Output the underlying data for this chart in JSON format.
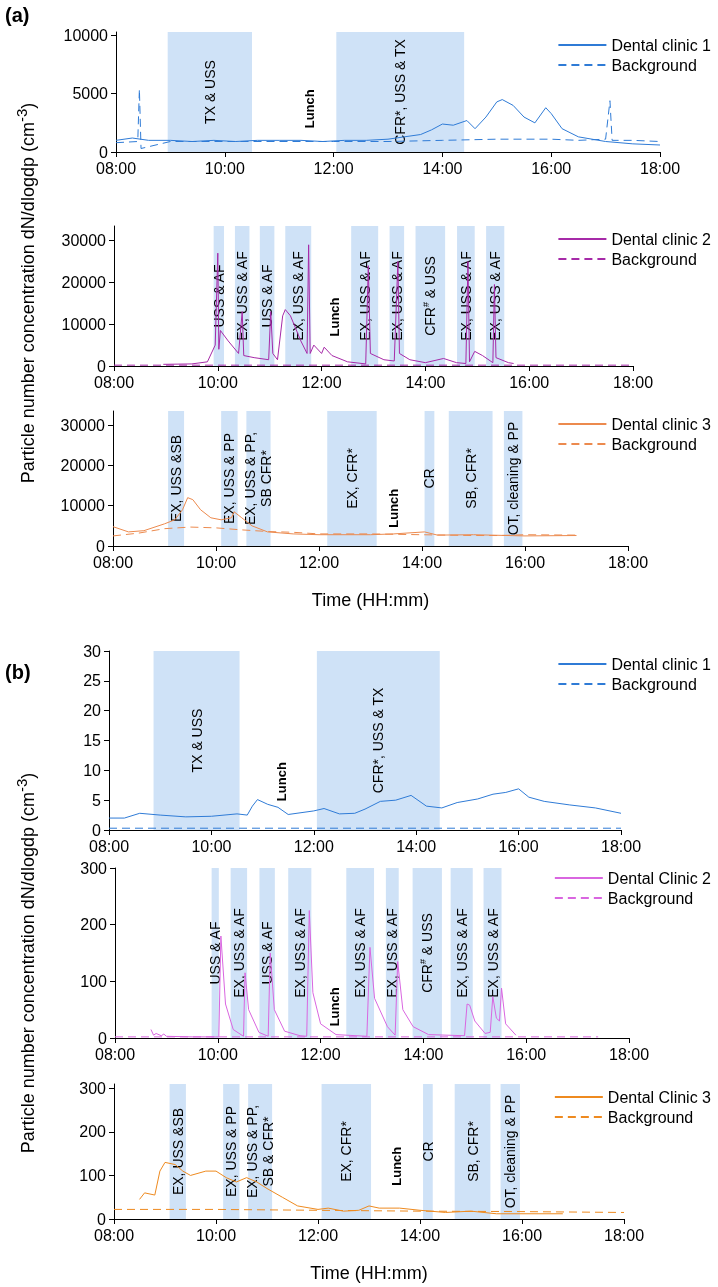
{
  "chart_data": [
    {
      "type": "line",
      "title": "(a)",
      "xlim": [
        8,
        18
      ],
      "xticks": [
        {
          "value": 8,
          "label": "08:00"
        },
        {
          "value": 10,
          "label": "10:00"
        },
        {
          "value": 12,
          "label": "12:00"
        },
        {
          "value": 14,
          "label": "14:00"
        },
        {
          "value": 16,
          "label": "16:00"
        },
        {
          "value": 18,
          "label": "18:00"
        }
      ],
      "ylim": [
        0,
        10300
      ],
      "yticks": [
        0,
        5000,
        10000
      ],
      "grid": false,
      "legend": "top right",
      "marker": "none",
      "series": [
        {
          "name": "Dental clinic 1",
          "color": "#2f7bd6",
          "line_style": "solid",
          "x": [
            8,
            8.3,
            8.6,
            9,
            9.4,
            9.8,
            10.2,
            10.6,
            11,
            11.4,
            11.8,
            12.2,
            12.6,
            13,
            13.3,
            13.6,
            13.8,
            14,
            14.2,
            14.45,
            14.6,
            14.8,
            15,
            15.1,
            15.3,
            15.5,
            15.7,
            15.9,
            16,
            16.2,
            16.5,
            17,
            17.5,
            18
          ],
          "values": [
            1000,
            1200,
            1000,
            1000,
            900,
            1000,
            900,
            1000,
            1000,
            1000,
            900,
            1000,
            1000,
            1100,
            1300,
            1500,
            1900,
            2400,
            2300,
            2700,
            2000,
            3000,
            4300,
            4500,
            4000,
            3000,
            2500,
            3800,
            3300,
            2000,
            1300,
            900,
            700,
            600
          ]
        },
        {
          "name": "Background",
          "color": "#2f7bd6",
          "line_style": "dashed",
          "x": [
            8,
            8.4,
            8.43,
            8.46,
            9,
            10,
            11,
            12,
            13,
            14,
            15,
            16,
            16.5,
            17,
            17.08,
            17.12,
            17.5,
            18
          ],
          "values": [
            800,
            900,
            5400,
            300,
            900,
            900,
            900,
            900,
            900,
            1000,
            1100,
            1100,
            1000,
            1100,
            4400,
            1000,
            1000,
            900
          ]
        }
      ],
      "bands": [
        {
          "axis": "x",
          "from": 8.95,
          "to": 10.5,
          "label": "TX & USS",
          "color": "#cfe2f7"
        },
        {
          "axis": "x",
          "from": 12.05,
          "to": 14.4,
          "label": "CFR*, USS & TX",
          "color": "#cfe2f7"
        }
      ],
      "annotations": [
        "Lunch"
      ]
    },
    {
      "type": "line",
      "ylabel": "Particle number concentration dN/dlogdp (cm$^{-3}$)",
      "xlim": [
        8,
        18
      ],
      "xticks": [
        {
          "value": 8,
          "label": "08:00"
        },
        {
          "value": 10,
          "label": "10:00"
        },
        {
          "value": 12,
          "label": "12:00"
        },
        {
          "value": 14,
          "label": "14:00"
        },
        {
          "value": 16,
          "label": "16:00"
        },
        {
          "value": 18,
          "label": "18:00"
        }
      ],
      "ylim": [
        0,
        33500
      ],
      "yticks": [
        0,
        10000,
        20000,
        30000
      ],
      "grid": false,
      "legend": "top right",
      "marker": "none",
      "series": [
        {
          "name": "Dental clinic 2",
          "color": "#a62aa8",
          "line_style": "solid",
          "x": [
            8.95,
            9.5,
            9.8,
            9.95,
            10,
            10.02,
            10.05,
            10.2,
            10.4,
            10.47,
            10.5,
            10.7,
            10.98,
            11.02,
            11.06,
            11.15,
            11.25,
            11.3,
            11.4,
            11.6,
            11.72,
            11.75,
            11.78,
            11.85,
            12,
            12.05,
            12.2,
            12.5,
            12.85,
            12.9,
            12.94,
            13.2,
            13.4,
            13.47,
            13.5,
            13.7,
            14,
            14.35,
            14.6,
            14.78,
            14.82,
            14.85,
            14.95,
            15.1,
            15.3,
            15.33,
            15.36,
            15.6,
            15.7
          ],
          "values": [
            400,
            500,
            1000,
            5000,
            27000,
            4000,
            8500,
            6000,
            3000,
            13000,
            2500,
            2000,
            1500,
            13000,
            3000,
            1500,
            12000,
            13500,
            12000,
            6000,
            3000,
            29000,
            3000,
            5000,
            3000,
            4500,
            2500,
            1000,
            500,
            24000,
            3000,
            1500,
            1200,
            25000,
            3000,
            1500,
            800,
            1800,
            800,
            600,
            25000,
            1000,
            3500,
            2500,
            800,
            19500,
            2000,
            800,
            600
          ]
        },
        {
          "name": "Background",
          "color": "#a62aa8",
          "line_style": "dashed",
          "x": [
            8,
            10,
            12,
            14,
            16,
            18
          ],
          "values": [
            200,
            200,
            200,
            200,
            200,
            200
          ]
        }
      ],
      "bands": [
        {
          "axis": "x",
          "from": 9.92,
          "to": 10.12,
          "label": "USS & AF",
          "color": "#cfe2f7"
        },
        {
          "axis": "x",
          "from": 10.33,
          "to": 10.61,
          "label": "EX, USS & AF",
          "color": "#cfe2f7"
        },
        {
          "axis": "x",
          "from": 10.81,
          "to": 11.09,
          "label": "USS & AF",
          "color": "#cfe2f7"
        },
        {
          "axis": "x",
          "from": 11.3,
          "to": 11.8,
          "label": "EX, USS & AF",
          "color": "#cfe2f7"
        },
        {
          "axis": "x",
          "from": 12.57,
          "to": 13.09,
          "label": "EX, USS & AF",
          "color": "#cfe2f7"
        },
        {
          "axis": "x",
          "from": 13.31,
          "to": 13.59,
          "label": "EX, USS & AF",
          "color": "#cfe2f7"
        },
        {
          "axis": "x",
          "from": 13.81,
          "to": 14.38,
          "label": "CFR$^{#}$ & USS",
          "color": "#cfe2f7"
        },
        {
          "axis": "x",
          "from": 14.61,
          "to": 14.95,
          "label": "EX, USS & AF",
          "color": "#cfe2f7"
        },
        {
          "axis": "x",
          "from": 15.17,
          "to": 15.52,
          "label": "EX, USS & AF",
          "color": "#cfe2f7"
        }
      ],
      "annotations": [
        "Lunch"
      ]
    },
    {
      "type": "line",
      "xlabel": "Time (HH:mm)",
      "xlim": [
        8,
        18
      ],
      "xticks": [
        {
          "value": 8,
          "label": "08:00"
        },
        {
          "value": 10,
          "label": "10:00"
        },
        {
          "value": 12,
          "label": "12:00"
        },
        {
          "value": 14,
          "label": "14:00"
        },
        {
          "value": 16,
          "label": "16:00"
        },
        {
          "value": 18,
          "label": "18:00"
        }
      ],
      "ylim": [
        0,
        33500
      ],
      "yticks": [
        0,
        10000,
        20000,
        30000
      ],
      "grid": false,
      "legend": "top right",
      "marker": "none",
      "series": [
        {
          "name": "Dental clinic 3",
          "color": "#ec8a4e",
          "line_style": "solid",
          "x": [
            8,
            8.3,
            8.6,
            9,
            9.2,
            9.35,
            9.45,
            9.55,
            9.7,
            9.9,
            10.1,
            10.3,
            10.35,
            10.5,
            10.7,
            11,
            11.5,
            12,
            13,
            13.45,
            14.05,
            14.3,
            15,
            16,
            17
          ],
          "values": [
            4800,
            3500,
            3800,
            5500,
            6500,
            9000,
            12000,
            11500,
            9000,
            7000,
            6500,
            7000,
            8500,
            7000,
            5000,
            3500,
            3000,
            2800,
            2800,
            3000,
            3500,
            2700,
            2800,
            2500,
            2600
          ]
        },
        {
          "name": "Background",
          "color": "#ec8a4e",
          "line_style": "dashed",
          "x": [
            8,
            8.5,
            9,
            9.5,
            10,
            10.5,
            11,
            11.5,
            12,
            13,
            14,
            15,
            15.5,
            16,
            17
          ],
          "values": [
            2500,
            3200,
            4300,
            4700,
            4500,
            4000,
            3600,
            3400,
            3000,
            3000,
            2800,
            2600,
            2600,
            2800,
            2700
          ]
        }
      ],
      "bands": [
        {
          "axis": "x",
          "from": 9.07,
          "to": 9.38,
          "label": "EX, USS &SB",
          "color": "#cfe2f7"
        },
        {
          "axis": "x",
          "from": 10.1,
          "to": 10.42,
          "label": "EX, USS & PP",
          "color": "#cfe2f7"
        },
        {
          "axis": "x",
          "from": 10.59,
          "to": 11.06,
          "label": "EX, USS & PP,\nSB CFR*",
          "color": "#cfe2f7"
        },
        {
          "axis": "x",
          "from": 12.16,
          "to": 13.12,
          "label": "EX, CFR*",
          "color": "#cfe2f7"
        },
        {
          "axis": "x",
          "from": 14.05,
          "to": 14.24,
          "label": "CR",
          "color": "#cfe2f7"
        },
        {
          "axis": "x",
          "from": 14.52,
          "to": 15.37,
          "label": "SB, CFR*",
          "color": "#cfe2f7"
        },
        {
          "axis": "x",
          "from": 15.59,
          "to": 15.95,
          "label": "OT, cleaning & PP",
          "color": "#cfe2f7"
        }
      ],
      "annotations": [
        "Lunch"
      ]
    },
    {
      "type": "line",
      "title": "(b)",
      "xlim": [
        8,
        18
      ],
      "xticks": [
        {
          "value": 8,
          "label": "08:00"
        },
        {
          "value": 10,
          "label": "10:00"
        },
        {
          "value": 12,
          "label": "12:00"
        },
        {
          "value": 14,
          "label": "14:00"
        },
        {
          "value": 16,
          "label": "16:00"
        },
        {
          "value": 18,
          "label": "18:00"
        }
      ],
      "ylim": [
        0,
        30
      ],
      "yticks": [
        0,
        5,
        10,
        15,
        20,
        25,
        30
      ],
      "grid": false,
      "legend": "top right",
      "marker": "none",
      "series": [
        {
          "name": "Dental clinic 1",
          "color": "#2f7bd6",
          "line_style": "solid",
          "x": [
            8,
            8.3,
            8.6,
            9,
            9.5,
            10,
            10.5,
            10.7,
            10.8,
            10.9,
            11.1,
            11.3,
            11.5,
            12,
            12.2,
            12.5,
            12.8,
            13,
            13.3,
            13.6,
            13.9,
            14.2,
            14.5,
            14.8,
            15.2,
            15.5,
            15.75,
            16,
            16.2,
            16.5,
            17,
            17.5,
            18
          ],
          "values": [
            2,
            2,
            2.8,
            2.5,
            2.2,
            2.3,
            2.7,
            2.5,
            4,
            5.1,
            4.3,
            3.8,
            2.6,
            3.2,
            3.6,
            2.7,
            2.8,
            3.5,
            4.8,
            5,
            5.8,
            4,
            3.7,
            4.6,
            5.2,
            6,
            6.3,
            6.9,
            5.5,
            4.8,
            4.2,
            3.7,
            2.8
          ]
        },
        {
          "name": "Background",
          "color": "#2f7bd6",
          "line_style": "dashed",
          "x": [
            8,
            10,
            12,
            14,
            16,
            18
          ],
          "values": [
            0.3,
            0.3,
            0.3,
            0.3,
            0.3,
            0.3
          ]
        }
      ],
      "bands": [
        {
          "axis": "x",
          "from": 8.87,
          "to": 10.55,
          "label": "TX & USS",
          "color": "#cfe2f7"
        },
        {
          "axis": "x",
          "from": 12.06,
          "to": 14.46,
          "label": "CFR*, USS & TX",
          "color": "#cfe2f7"
        }
      ],
      "annotations": [
        "Lunch"
      ]
    },
    {
      "type": "line",
      "ylabel": "Particle number concentration dN/dlogdp (cm$^{-3}$)",
      "xlim": [
        8,
        18
      ],
      "xticks": [
        {
          "value": 8,
          "label": "08:00"
        },
        {
          "value": 10,
          "label": "10:00"
        },
        {
          "value": 12,
          "label": "12:00"
        },
        {
          "value": 14,
          "label": "14:00"
        },
        {
          "value": 16,
          "label": "16:00"
        },
        {
          "value": 18,
          "label": "18:00"
        }
      ],
      "ylim": [
        0,
        300
      ],
      "yticks": [
        0,
        100,
        200,
        300
      ],
      "grid": false,
      "legend": "top right",
      "marker": "none",
      "series": [
        {
          "name": "Dental Clinic 2",
          "color": "#d966e0",
          "line_style": "solid",
          "x": [
            8.7,
            8.75,
            8.8,
            8.9,
            8.95,
            9,
            9.5,
            9.95,
            10.02,
            10.06,
            10.15,
            10.3,
            10.5,
            10.53,
            10.6,
            10.8,
            10.98,
            11.02,
            11.1,
            11.3,
            11.6,
            11.73,
            11.78,
            11.85,
            12,
            12.3,
            12.9,
            12.96,
            13.05,
            13.3,
            13.45,
            13.5,
            13.6,
            13.8,
            14.1,
            14.8,
            14.85,
            14.9,
            15,
            15.2,
            15.3,
            15.35,
            15.42,
            15.48,
            15.52,
            15.6,
            15.8
          ],
          "values": [
            15,
            5,
            8,
            4,
            7,
            3,
            2,
            2,
            2,
            180,
            60,
            15,
            3,
            115,
            50,
            10,
            3,
            150,
            50,
            12,
            4,
            3,
            225,
            80,
            25,
            6,
            3,
            160,
            70,
            20,
            5,
            135,
            50,
            20,
            6,
            4,
            60,
            58,
            30,
            8,
            10,
            73,
            35,
            30,
            88,
            25,
            5
          ]
        },
        {
          "name": "Background",
          "color": "#d966e0",
          "line_style": "dashed",
          "x": [
            8,
            10,
            12,
            14,
            16,
            17.4
          ],
          "values": [
            2,
            2,
            2,
            2,
            2,
            2
          ]
        }
      ],
      "bands": [
        {
          "axis": "x",
          "from": 9.88,
          "to": 10.02,
          "label": "USS & AF",
          "color": "#cfe2f7"
        },
        {
          "axis": "x",
          "from": 10.25,
          "to": 10.57,
          "label": "EX, USS & AF",
          "color": "#cfe2f7"
        },
        {
          "axis": "x",
          "from": 10.81,
          "to": 11.11,
          "label": "USS & AF",
          "color": "#cfe2f7"
        },
        {
          "axis": "x",
          "from": 11.37,
          "to": 11.82,
          "label": "EX, USS & AF",
          "color": "#cfe2f7"
        },
        {
          "axis": "x",
          "from": 12.5,
          "to": 13.04,
          "label": "EX, USS & AF",
          "color": "#cfe2f7"
        },
        {
          "axis": "x",
          "from": 13.27,
          "to": 13.52,
          "label": "EX, USS & AF",
          "color": "#cfe2f7"
        },
        {
          "axis": "x",
          "from": 13.79,
          "to": 14.36,
          "label": "CFR$^{#}$ & USS",
          "color": "#cfe2f7"
        },
        {
          "axis": "x",
          "from": 14.53,
          "to": 14.96,
          "label": "EX, USS & AF",
          "color": "#cfe2f7"
        },
        {
          "axis": "x",
          "from": 15.17,
          "to": 15.52,
          "label": "EX, USS & AF",
          "color": "#cfe2f7"
        }
      ],
      "annotations": [
        "Lunch"
      ]
    },
    {
      "type": "line",
      "xlabel": "Time (HH:mm)",
      "xlim": [
        8,
        18
      ],
      "xticks": [
        {
          "value": 8,
          "label": "08:00"
        },
        {
          "value": 10,
          "label": "10:00"
        },
        {
          "value": 12,
          "label": "12:00"
        },
        {
          "value": 14,
          "label": "14:00"
        },
        {
          "value": 16,
          "label": "16:00"
        },
        {
          "value": 18,
          "label": "18:00"
        }
      ],
      "ylim": [
        0,
        310
      ],
      "yticks": [
        0,
        100,
        200,
        300
      ],
      "grid": false,
      "legend": "top right",
      "marker": "none",
      "series": [
        {
          "name": "Dental Clinic 3",
          "color": "#ee8a1f",
          "line_style": "solid",
          "x": [
            8.5,
            8.6,
            8.8,
            8.9,
            9,
            9.2,
            9.35,
            9.5,
            9.8,
            10,
            10.2,
            10.4,
            10.6,
            10.8,
            11,
            11.3,
            11.6,
            12,
            12.2,
            12.5,
            12.8,
            13,
            13.2,
            13.6,
            14,
            14.5,
            15,
            15.5,
            16,
            16.8
          ],
          "values": [
            45,
            60,
            55,
            110,
            130,
            125,
            110,
            100,
            110,
            110,
            95,
            85,
            95,
            85,
            70,
            50,
            30,
            22,
            25,
            18,
            20,
            30,
            25,
            25,
            20,
            15,
            18,
            12,
            12,
            12
          ]
        },
        {
          "name": "Background",
          "color": "#ee8a1f",
          "line_style": "dashed",
          "x": [
            8,
            10,
            12,
            14,
            16,
            18
          ],
          "values": [
            22,
            22,
            20,
            18,
            17,
            15
          ]
        }
      ],
      "bands": [
        {
          "axis": "x",
          "from": 9.09,
          "to": 9.41,
          "label": "EX, USS &SB",
          "color": "#cfe2f7"
        },
        {
          "axis": "x",
          "from": 10.14,
          "to": 10.46,
          "label": "EX, USS & PP",
          "color": "#cfe2f7"
        },
        {
          "axis": "x",
          "from": 10.63,
          "to": 11.1,
          "label": "EX, USS & PP,\nSB & CFR*",
          "color": "#cfe2f7"
        },
        {
          "axis": "x",
          "from": 12.07,
          "to": 13.04,
          "label": "EX, CFR*",
          "color": "#cfe2f7"
        },
        {
          "axis": "x",
          "from": 14.06,
          "to": 14.25,
          "label": "CR",
          "color": "#cfe2f7"
        },
        {
          "axis": "x",
          "from": 14.68,
          "to": 15.38,
          "label": "SB, CFR*",
          "color": "#cfe2f7"
        },
        {
          "axis": "x",
          "from": 15.58,
          "to": 15.96,
          "label": "OT, cleaning & PP",
          "color": "#cfe2f7"
        }
      ],
      "annotations": [
        "Lunch"
      ]
    }
  ]
}
